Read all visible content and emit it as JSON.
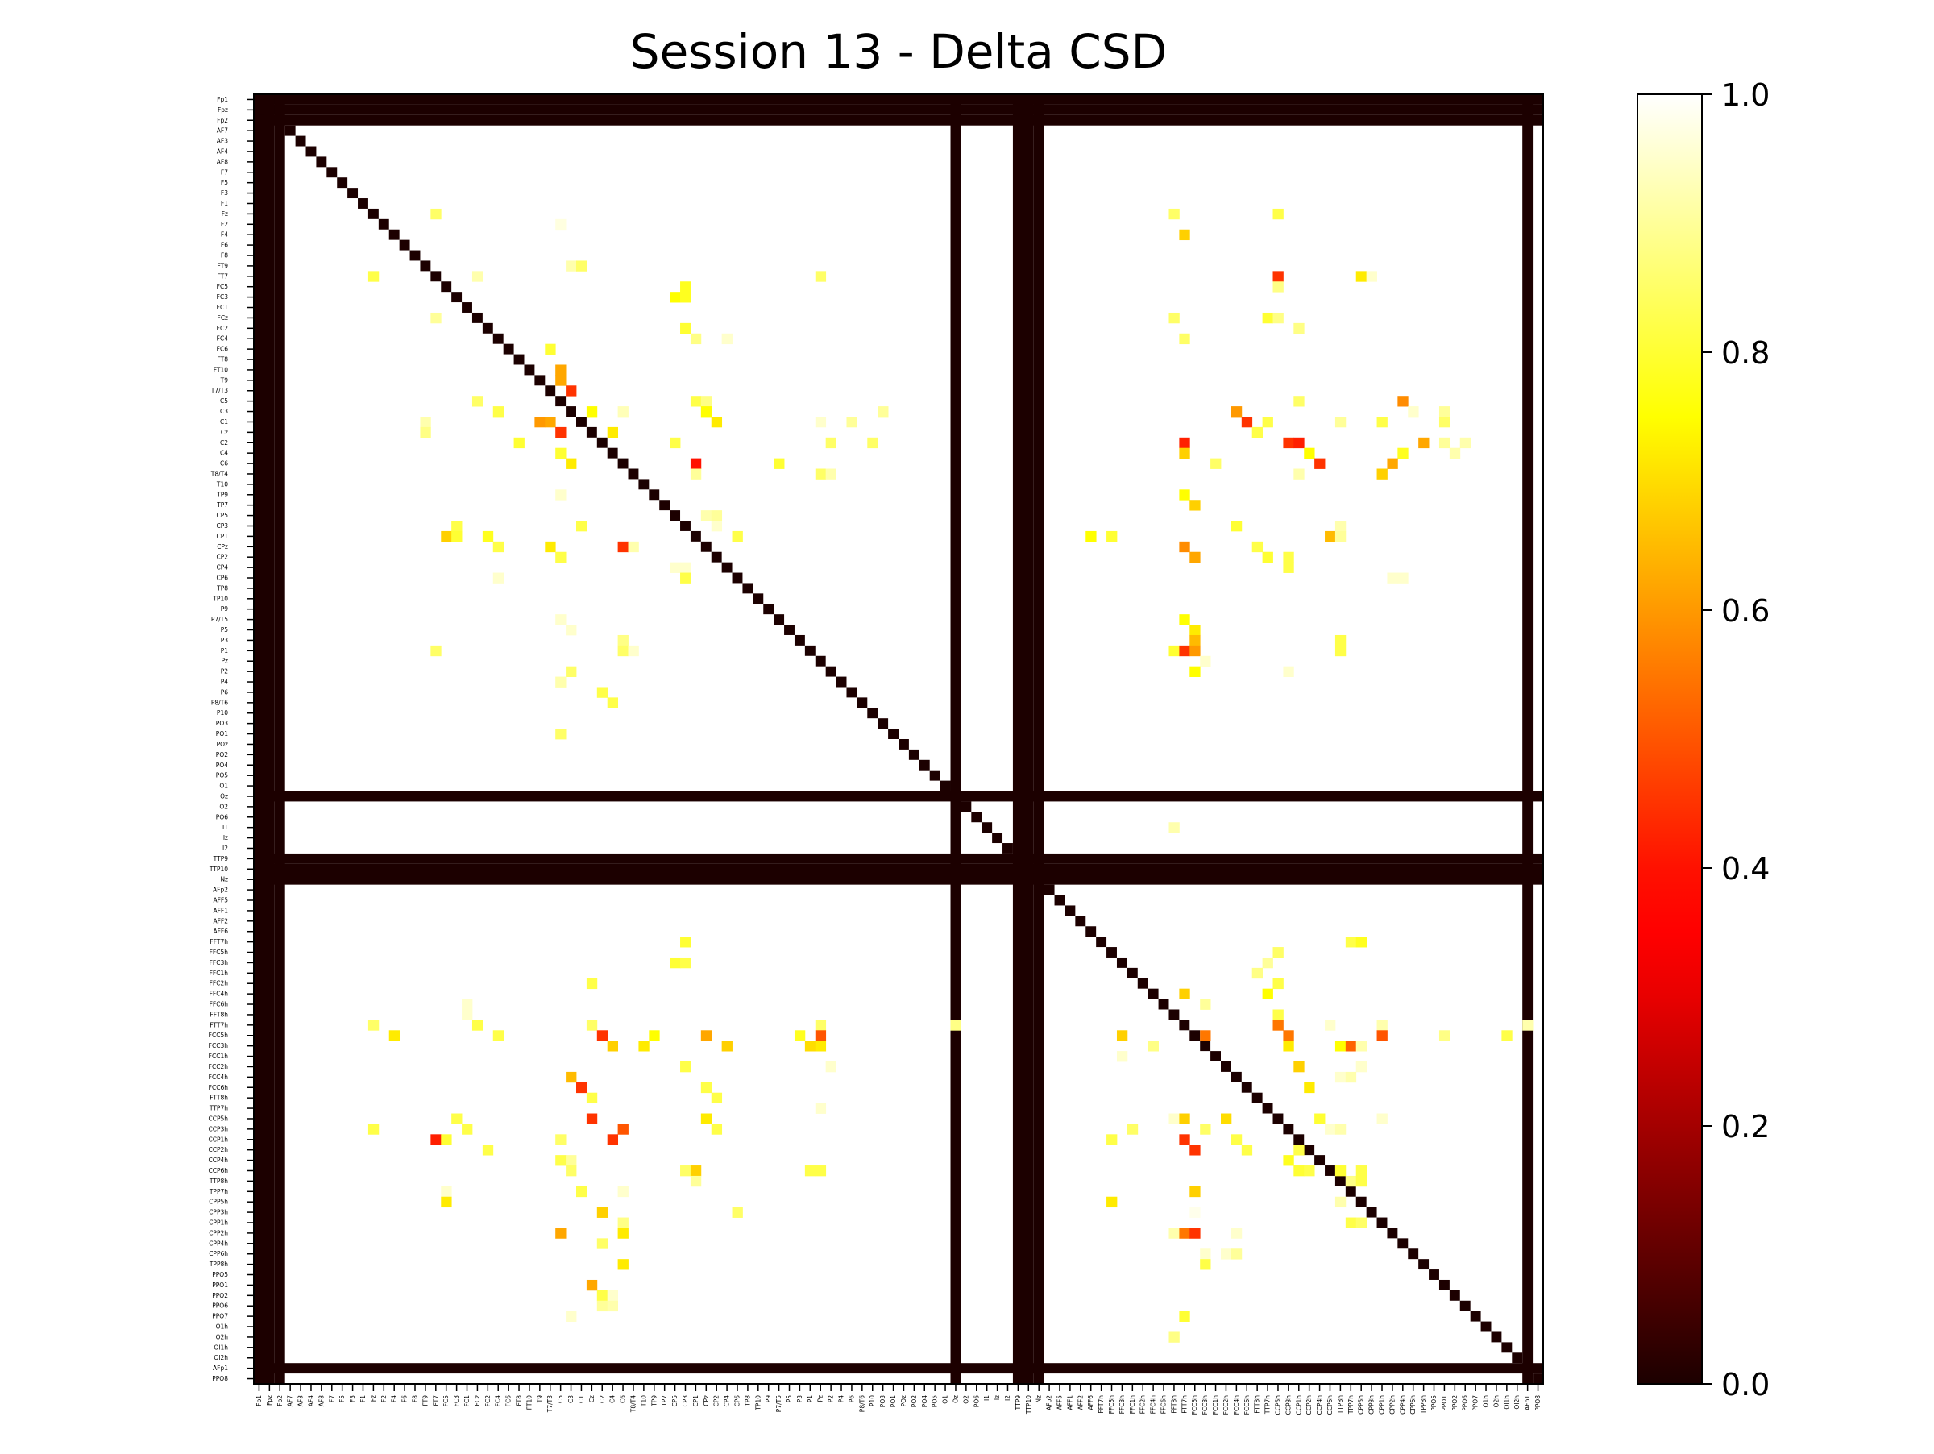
{
  "chart_data": {
    "type": "heatmap",
    "title": "Session 13 - Delta CSD",
    "xlabel": "",
    "ylabel": "",
    "labels": [
      "Fp1",
      "Fpz",
      "Fp2",
      "AF7",
      "AF3",
      "AF4",
      "AF8",
      "F7",
      "F5",
      "F3",
      "F1",
      "Fz",
      "F2",
      "F4",
      "F6",
      "F8",
      "FT9",
      "FT7",
      "FC5",
      "FC3",
      "FC1",
      "FCz",
      "FC2",
      "FC4",
      "FC6",
      "FT8",
      "FT10",
      "T9",
      "T7/T3",
      "C5",
      "C3",
      "C1",
      "Cz",
      "C2",
      "C4",
      "C6",
      "T8/T4",
      "T10",
      "TP9",
      "TP7",
      "CP5",
      "CP3",
      "CP1",
      "CPz",
      "CP2",
      "CP4",
      "CP6",
      "TP8",
      "TP10",
      "P9",
      "P7/T5",
      "P5",
      "P3",
      "P1",
      "Pz",
      "P2",
      "P4",
      "P6",
      "P8/T6",
      "P10",
      "PO3",
      "PO1",
      "POz",
      "PO2",
      "PO4",
      "PO5",
      "O1",
      "Oz",
      "O2",
      "PO6",
      "I1",
      "Iz",
      "I2",
      "TTP9",
      "TTP10",
      "Nz",
      "AFp2",
      "AFF5",
      "AFF1",
      "AFF2",
      "AFF6",
      "FFT7h",
      "FFC5h",
      "FFC3h",
      "FFC1h",
      "FFC2h",
      "FFC4h",
      "FFC6h",
      "FFT8h",
      "FTT7h",
      "FCC5h",
      "FCC3h",
      "FCC1h",
      "FCC2h",
      "FCC4h",
      "FCC6h",
      "FTT8h",
      "TTP7h",
      "CCP5h",
      "CCP3h",
      "CCP1h",
      "CCP2h",
      "CCP4h",
      "CCP6h",
      "TTP8h",
      "TPP7h",
      "CPP5h",
      "CPP3h",
      "CPP1h",
      "CPP2h",
      "CPP4h",
      "CPP6h",
      "TPP8h",
      "PPO5",
      "PPO1",
      "PPO2",
      "PPO6",
      "PPO7",
      "O1h",
      "O2h",
      "OI1h",
      "OI2h",
      "AFp1",
      "PPO8"
    ],
    "colorbar": {
      "ticks": [
        "0.0",
        "0.2",
        "0.4",
        "0.6",
        "0.8",
        "1.0"
      ],
      "range": [
        0,
        1
      ],
      "colormap": "hot"
    },
    "zero_rows": [
      0,
      1,
      2,
      67,
      73,
      74,
      75,
      122
    ],
    "diagonal_value": 0.0,
    "default_value": 1.0,
    "cells": [
      [
        11,
        17,
        0.85
      ],
      [
        11,
        88,
        0.85
      ],
      [
        11,
        98,
        0.82
      ],
      [
        12,
        29,
        0.97
      ],
      [
        13,
        89,
        0.68
      ],
      [
        16,
        30,
        0.92
      ],
      [
        16,
        31,
        0.85
      ],
      [
        17,
        11,
        0.82
      ],
      [
        17,
        21,
        0.92
      ],
      [
        17,
        54,
        0.85
      ],
      [
        17,
        98,
        0.45
      ],
      [
        17,
        106,
        0.72
      ],
      [
        17,
        107,
        0.95
      ],
      [
        18,
        41,
        0.78
      ],
      [
        18,
        98,
        0.88
      ],
      [
        19,
        40,
        0.75
      ],
      [
        19,
        41,
        0.78
      ],
      [
        21,
        17,
        0.9
      ],
      [
        21,
        88,
        0.85
      ],
      [
        21,
        97,
        0.8
      ],
      [
        21,
        98,
        0.88
      ],
      [
        22,
        41,
        0.8
      ],
      [
        22,
        100,
        0.88
      ],
      [
        23,
        42,
        0.88
      ],
      [
        23,
        45,
        0.95
      ],
      [
        23,
        89,
        0.85
      ],
      [
        24,
        28,
        0.8
      ],
      [
        26,
        29,
        0.62
      ],
      [
        27,
        29,
        0.62
      ],
      [
        28,
        30,
        0.45
      ],
      [
        29,
        21,
        0.85
      ],
      [
        29,
        42,
        0.82
      ],
      [
        29,
        43,
        0.88
      ],
      [
        29,
        100,
        0.85
      ],
      [
        29,
        110,
        0.58
      ],
      [
        30,
        23,
        0.82
      ],
      [
        30,
        32,
        0.75
      ],
      [
        30,
        35,
        0.93
      ],
      [
        30,
        43,
        0.75
      ],
      [
        30,
        60,
        0.9
      ],
      [
        30,
        94,
        0.6
      ],
      [
        30,
        111,
        0.95
      ],
      [
        30,
        114,
        0.9
      ],
      [
        31,
        16,
        0.92
      ],
      [
        31,
        27,
        0.6
      ],
      [
        31,
        28,
        0.62
      ],
      [
        31,
        44,
        0.72
      ],
      [
        31,
        54,
        0.95
      ],
      [
        31,
        57,
        0.9
      ],
      [
        31,
        95,
        0.45
      ],
      [
        31,
        97,
        0.82
      ],
      [
        31,
        104,
        0.9
      ],
      [
        31,
        108,
        0.82
      ],
      [
        31,
        114,
        0.85
      ],
      [
        32,
        16,
        0.88
      ],
      [
        32,
        29,
        0.45
      ],
      [
        32,
        34,
        0.72
      ],
      [
        32,
        96,
        0.82
      ],
      [
        33,
        25,
        0.8
      ],
      [
        33,
        40,
        0.82
      ],
      [
        33,
        55,
        0.85
      ],
      [
        33,
        59,
        0.85
      ],
      [
        33,
        89,
        0.42
      ],
      [
        33,
        99,
        0.45
      ],
      [
        33,
        100,
        0.42
      ],
      [
        33,
        112,
        0.62
      ],
      [
        33,
        114,
        0.9
      ],
      [
        33,
        116,
        0.92
      ],
      [
        34,
        29,
        0.8
      ],
      [
        34,
        89,
        0.68
      ],
      [
        34,
        101,
        0.75
      ],
      [
        34,
        110,
        0.78
      ],
      [
        34,
        115,
        0.92
      ],
      [
        35,
        30,
        0.72
      ],
      [
        35,
        42,
        0.4
      ],
      [
        35,
        50,
        0.8
      ],
      [
        35,
        92,
        0.85
      ],
      [
        35,
        102,
        0.45
      ],
      [
        35,
        109,
        0.62
      ],
      [
        36,
        42,
        0.9
      ],
      [
        36,
        54,
        0.85
      ],
      [
        36,
        55,
        0.92
      ],
      [
        36,
        100,
        0.92
      ],
      [
        36,
        108,
        0.68
      ],
      [
        38,
        29,
        0.95
      ],
      [
        38,
        89,
        0.75
      ],
      [
        39,
        90,
        0.68
      ],
      [
        40,
        43,
        0.92
      ],
      [
        40,
        44,
        0.9
      ],
      [
        41,
        19,
        0.82
      ],
      [
        41,
        31,
        0.82
      ],
      [
        41,
        44,
        0.95
      ],
      [
        41,
        94,
        0.8
      ],
      [
        41,
        104,
        0.92
      ],
      [
        42,
        18,
        0.68
      ],
      [
        42,
        19,
        0.8
      ],
      [
        42,
        22,
        0.78
      ],
      [
        42,
        46,
        0.82
      ],
      [
        42,
        80,
        0.75
      ],
      [
        42,
        82,
        0.8
      ],
      [
        42,
        103,
        0.65
      ],
      [
        42,
        104,
        0.9
      ],
      [
        43,
        23,
        0.82
      ],
      [
        43,
        28,
        0.72
      ],
      [
        43,
        35,
        0.45
      ],
      [
        43,
        36,
        0.92
      ],
      [
        43,
        89,
        0.58
      ],
      [
        43,
        96,
        0.82
      ],
      [
        44,
        29,
        0.82
      ],
      [
        44,
        90,
        0.62
      ],
      [
        44,
        97,
        0.8
      ],
      [
        44,
        99,
        0.82
      ],
      [
        45,
        40,
        0.95
      ],
      [
        45,
        41,
        0.95
      ],
      [
        45,
        99,
        0.82
      ],
      [
        46,
        23,
        0.95
      ],
      [
        46,
        41,
        0.82
      ],
      [
        46,
        109,
        0.95
      ],
      [
        46,
        110,
        0.95
      ],
      [
        50,
        29,
        0.95
      ],
      [
        50,
        89,
        0.75
      ],
      [
        51,
        30,
        0.95
      ],
      [
        51,
        90,
        0.72
      ],
      [
        52,
        35,
        0.88
      ],
      [
        52,
        90,
        0.65
      ],
      [
        52,
        104,
        0.82
      ],
      [
        53,
        17,
        0.85
      ],
      [
        53,
        35,
        0.85
      ],
      [
        53,
        36,
        0.95
      ],
      [
        53,
        88,
        0.8
      ],
      [
        53,
        89,
        0.45
      ],
      [
        53,
        90,
        0.6
      ],
      [
        53,
        104,
        0.82
      ],
      [
        54,
        91,
        0.95
      ],
      [
        55,
        30,
        0.85
      ],
      [
        55,
        90,
        0.75
      ],
      [
        55,
        99,
        0.95
      ],
      [
        56,
        29,
        0.92
      ],
      [
        57,
        33,
        0.82
      ],
      [
        58,
        34,
        0.82
      ],
      [
        61,
        29,
        0.85
      ],
      [
        70,
        88,
        0.92
      ],
      [
        81,
        41,
        0.8
      ],
      [
        81,
        105,
        0.82
      ],
      [
        81,
        106,
        0.78
      ],
      [
        82,
        98,
        0.85
      ],
      [
        83,
        40,
        0.8
      ],
      [
        83,
        41,
        0.82
      ],
      [
        83,
        97,
        0.9
      ],
      [
        84,
        96,
        0.88
      ],
      [
        85,
        32,
        0.82
      ],
      [
        85,
        98,
        0.82
      ],
      [
        86,
        89,
        0.68
      ],
      [
        86,
        97,
        0.75
      ],
      [
        87,
        20,
        0.95
      ],
      [
        87,
        91,
        0.9
      ],
      [
        88,
        20,
        0.95
      ],
      [
        88,
        98,
        0.82
      ],
      [
        89,
        11,
        0.85
      ],
      [
        89,
        21,
        0.82
      ],
      [
        89,
        32,
        0.85
      ],
      [
        89,
        54,
        0.85
      ],
      [
        89,
        67,
        0.88
      ],
      [
        89,
        98,
        0.55
      ],
      [
        89,
        103,
        0.95
      ],
      [
        89,
        108,
        0.92
      ],
      [
        89,
        122,
        0.92
      ],
      [
        90,
        13,
        0.72
      ],
      [
        90,
        23,
        0.82
      ],
      [
        90,
        33,
        0.45
      ],
      [
        90,
        38,
        0.75
      ],
      [
        90,
        43,
        0.62
      ],
      [
        90,
        52,
        0.78
      ],
      [
        90,
        54,
        0.5
      ],
      [
        90,
        83,
        0.68
      ],
      [
        90,
        91,
        0.55
      ],
      [
        90,
        99,
        0.55
      ],
      [
        90,
        108,
        0.5
      ],
      [
        90,
        114,
        0.88
      ],
      [
        90,
        120,
        0.82
      ],
      [
        91,
        34,
        0.68
      ],
      [
        91,
        37,
        0.72
      ],
      [
        91,
        45,
        0.68
      ],
      [
        91,
        53,
        0.7
      ],
      [
        91,
        54,
        0.72
      ],
      [
        91,
        86,
        0.88
      ],
      [
        91,
        99,
        0.72
      ],
      [
        91,
        104,
        0.75
      ],
      [
        91,
        105,
        0.52
      ],
      [
        91,
        106,
        0.92
      ],
      [
        92,
        83,
        0.95
      ],
      [
        93,
        41,
        0.82
      ],
      [
        93,
        55,
        0.95
      ],
      [
        93,
        100,
        0.68
      ],
      [
        93,
        106,
        0.95
      ],
      [
        94,
        30,
        0.65
      ],
      [
        94,
        104,
        0.95
      ],
      [
        94,
        105,
        0.92
      ],
      [
        95,
        31,
        0.45
      ],
      [
        95,
        43,
        0.82
      ],
      [
        95,
        101,
        0.72
      ],
      [
        96,
        32,
        0.82
      ],
      [
        96,
        44,
        0.82
      ],
      [
        97,
        54,
        0.95
      ],
      [
        98,
        19,
        0.82
      ],
      [
        98,
        32,
        0.45
      ],
      [
        98,
        43,
        0.72
      ],
      [
        98,
        88,
        0.95
      ],
      [
        98,
        89,
        0.68
      ],
      [
        98,
        93,
        0.7
      ],
      [
        98,
        102,
        0.8
      ],
      [
        98,
        108,
        0.95
      ],
      [
        99,
        11,
        0.82
      ],
      [
        99,
        20,
        0.82
      ],
      [
        99,
        35,
        0.5
      ],
      [
        99,
        44,
        0.82
      ],
      [
        99,
        84,
        0.85
      ],
      [
        99,
        91,
        0.85
      ],
      [
        99,
        103,
        0.95
      ],
      [
        99,
        104,
        0.92
      ],
      [
        100,
        17,
        0.42
      ],
      [
        100,
        18,
        0.8
      ],
      [
        100,
        29,
        0.85
      ],
      [
        100,
        34,
        0.45
      ],
      [
        100,
        82,
        0.82
      ],
      [
        100,
        89,
        0.45
      ],
      [
        100,
        94,
        0.82
      ],
      [
        101,
        22,
        0.82
      ],
      [
        101,
        90,
        0.45
      ],
      [
        101,
        95,
        0.82
      ],
      [
        101,
        100,
        0.82
      ],
      [
        102,
        29,
        0.82
      ],
      [
        102,
        30,
        0.9
      ],
      [
        102,
        99,
        0.78
      ],
      [
        103,
        30,
        0.85
      ],
      [
        103,
        41,
        0.85
      ],
      [
        103,
        42,
        0.68
      ],
      [
        103,
        53,
        0.82
      ],
      [
        103,
        54,
        0.82
      ],
      [
        103,
        100,
        0.8
      ],
      [
        103,
        101,
        0.82
      ],
      [
        103,
        104,
        0.8
      ],
      [
        103,
        106,
        0.82
      ],
      [
        104,
        42,
        0.9
      ],
      [
        104,
        105,
        0.88
      ],
      [
        104,
        106,
        0.82
      ],
      [
        105,
        18,
        0.95
      ],
      [
        105,
        31,
        0.82
      ],
      [
        105,
        35,
        0.95
      ],
      [
        105,
        90,
        0.68
      ],
      [
        106,
        18,
        0.72
      ],
      [
        106,
        82,
        0.72
      ],
      [
        106,
        104,
        0.92
      ],
      [
        107,
        33,
        0.68
      ],
      [
        107,
        46,
        0.85
      ],
      [
        107,
        90,
        0.98
      ],
      [
        108,
        35,
        0.88
      ],
      [
        108,
        105,
        0.82
      ],
      [
        108,
        106,
        0.85
      ],
      [
        109,
        29,
        0.62
      ],
      [
        109,
        35,
        0.72
      ],
      [
        109,
        88,
        0.92
      ],
      [
        109,
        89,
        0.55
      ],
      [
        109,
        90,
        0.45
      ],
      [
        109,
        94,
        0.95
      ],
      [
        110,
        33,
        0.85
      ],
      [
        111,
        91,
        0.95
      ],
      [
        111,
        93,
        0.95
      ],
      [
        111,
        94,
        0.9
      ],
      [
        112,
        35,
        0.72
      ],
      [
        112,
        91,
        0.82
      ],
      [
        114,
        32,
        0.62
      ],
      [
        115,
        33,
        0.82
      ],
      [
        115,
        34,
        0.95
      ],
      [
        116,
        33,
        0.9
      ],
      [
        116,
        34,
        0.92
      ],
      [
        117,
        30,
        0.95
      ],
      [
        117,
        89,
        0.8
      ],
      [
        119,
        88,
        0.88
      ]
    ]
  }
}
